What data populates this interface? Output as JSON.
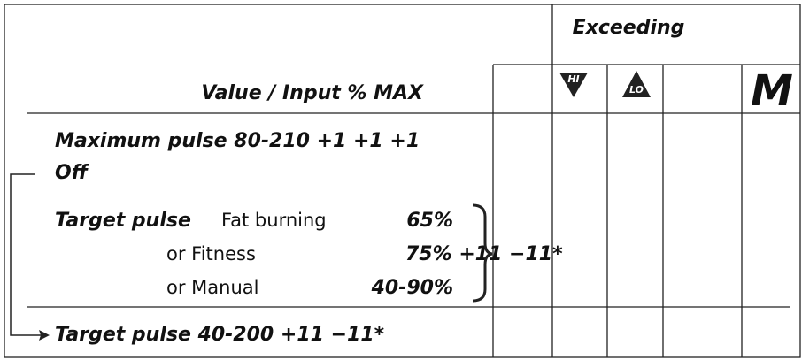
{
  "header": {
    "group_title": "Exceeding",
    "column_title": "Value / Input % MAX",
    "icon_hi": "HI",
    "icon_lo": "LO",
    "mode_label": "M"
  },
  "rows": {
    "max_pulse": "Maximum pulse  80-210 +1 +1 +1",
    "off": "Off",
    "target_pulse": "Target pulse",
    "fat_burning": "Fat burning",
    "fat_burning_value": "65%",
    "fitness": "or Fitness",
    "fitness_value": "75% +11 −11*",
    "manual": "or Manual",
    "manual_value": "40-90%",
    "target_pulse_range": "Target pulse 40-200 +11 −11*"
  }
}
